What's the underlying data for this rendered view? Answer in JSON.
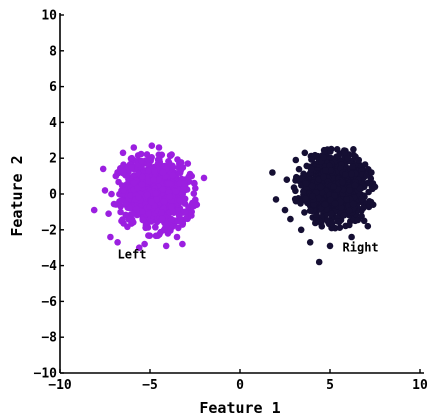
{
  "chart_data": {
    "type": "scatter",
    "title": "",
    "xlabel": "Feature 1",
    "ylabel": "Feature 2",
    "xlim": [
      -10,
      10
    ],
    "ylim": [
      -10,
      10
    ],
    "xticks": [
      -10,
      -5,
      0,
      5,
      10
    ],
    "yticks": [
      -10,
      -8,
      -6,
      -4,
      -2,
      0,
      2,
      4,
      6,
      8,
      10
    ],
    "grid": false,
    "legend": "none",
    "series": [
      {
        "name": "Left",
        "color": "#9b1fe0",
        "center": [
          -4.8,
          0.0
        ],
        "spread_sd": [
          0.9,
          0.9
        ],
        "n_points": 1000,
        "points": [
          [
            -8.1,
            -0.9
          ],
          [
            -7.6,
            1.4
          ],
          [
            -7.2,
            -2.4
          ],
          [
            -6.8,
            -2.7
          ],
          [
            -6.5,
            2.3
          ],
          [
            -5.9,
            2.6
          ],
          [
            -5.6,
            -3.0
          ],
          [
            -5.3,
            -2.8
          ],
          [
            -4.9,
            2.7
          ],
          [
            -4.5,
            2.6
          ],
          [
            -4.1,
            -2.9
          ],
          [
            -3.8,
            2.2
          ],
          [
            -3.5,
            -2.4
          ],
          [
            -3.2,
            -2.8
          ],
          [
            -2.9,
            1.7
          ],
          [
            -2.7,
            -1.2
          ],
          [
            -2.4,
            -0.6
          ],
          [
            -2.0,
            0.9
          ],
          [
            -7.5,
            0.2
          ],
          [
            -7.3,
            -1.1
          ],
          [
            -6.9,
            1.0
          ],
          [
            -3.1,
            0.6
          ],
          [
            -3.3,
            -1.4
          ]
        ]
      },
      {
        "name": "Right",
        "color": "#150f33",
        "center": [
          5.2,
          0.3
        ],
        "spread_sd": [
          0.85,
          0.85
        ],
        "n_points": 1000,
        "points": [
          [
            1.8,
            1.2
          ],
          [
            2.0,
            -0.3
          ],
          [
            2.6,
            0.8
          ],
          [
            2.8,
            -1.4
          ],
          [
            3.1,
            1.9
          ],
          [
            3.4,
            -2.0
          ],
          [
            3.6,
            2.3
          ],
          [
            3.9,
            -2.7
          ],
          [
            4.4,
            -3.8
          ],
          [
            4.7,
            2.4
          ],
          [
            5.0,
            -2.9
          ],
          [
            5.4,
            2.5
          ],
          [
            5.8,
            2.3
          ],
          [
            6.2,
            -2.4
          ],
          [
            6.6,
            1.9
          ],
          [
            6.9,
            -1.5
          ],
          [
            7.3,
            1.2
          ],
          [
            7.5,
            0.4
          ],
          [
            7.4,
            -0.6
          ],
          [
            7.1,
            -1.8
          ],
          [
            2.5,
            -0.9
          ],
          [
            6.3,
            2.5
          ]
        ]
      }
    ],
    "annotations": [
      {
        "text": "Left",
        "x": -6.0,
        "y": -3.6
      },
      {
        "text": "Right",
        "x": 6.7,
        "y": -3.2
      }
    ]
  }
}
